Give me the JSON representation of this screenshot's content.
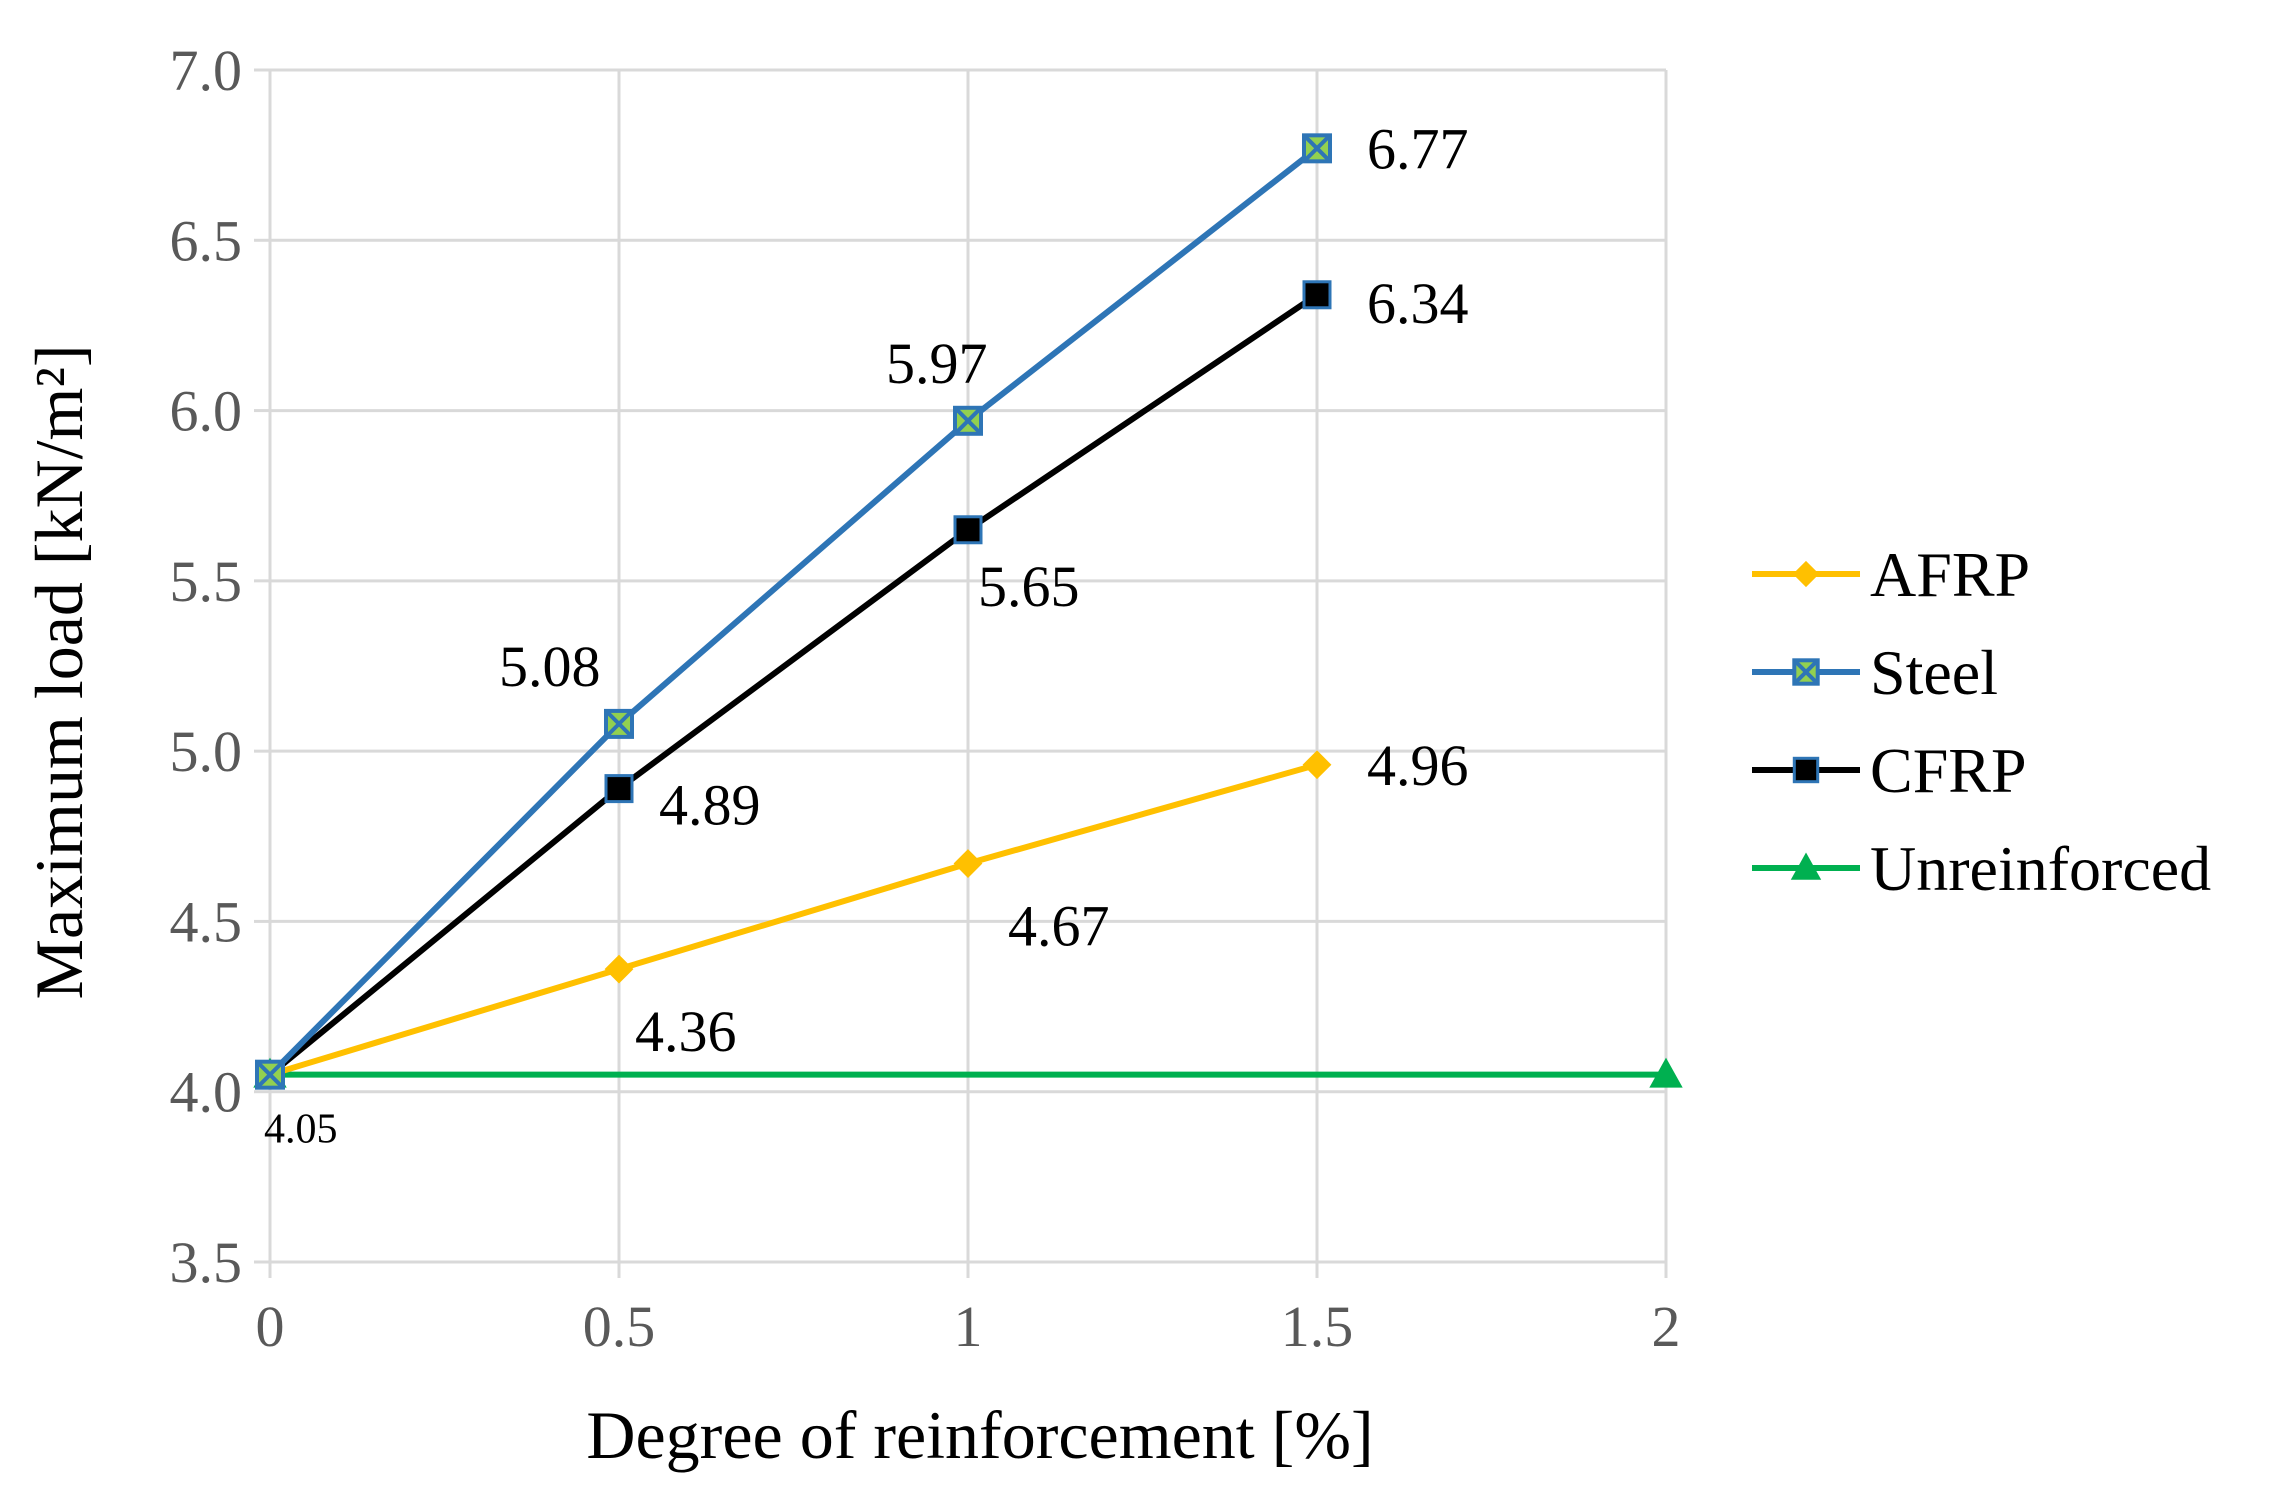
{
  "chart_data": {
    "type": "line",
    "title": "",
    "xlabel": "Degree of reinforcement [%]",
    "ylabel": "Maximum load [kN/m²]",
    "xlim": [
      0,
      2
    ],
    "ylim": [
      3.5,
      7.0
    ],
    "x_ticks": [
      "0",
      "0.5",
      "1",
      "1.5",
      "2"
    ],
    "y_ticks": [
      "3.5",
      "4.0",
      "4.5",
      "5.0",
      "5.5",
      "6.0",
      "6.5",
      "7.0"
    ],
    "grid": true,
    "legend_position": "right",
    "series": [
      {
        "name": "AFRP",
        "color": "#FFC000",
        "marker": "diamond",
        "x": [
          0,
          0.5,
          1,
          1.5
        ],
        "values": [
          4.05,
          4.36,
          4.67,
          4.96
        ],
        "labels": [
          "",
          "4.36",
          "4.67",
          "4.96"
        ]
      },
      {
        "name": "Steel",
        "color": "#2E75B6",
        "marker": "square-x",
        "marker_fill": "#92D050",
        "x": [
          0,
          0.5,
          1,
          1.5
        ],
        "values": [
          4.05,
          5.08,
          5.97,
          6.77
        ],
        "labels": [
          "",
          "5.08",
          "5.97",
          "6.77"
        ]
      },
      {
        "name": "CFRP",
        "color": "#000000",
        "marker": "square",
        "marker_stroke": "#2E75B6",
        "x": [
          0,
          0.5,
          1,
          1.5
        ],
        "values": [
          4.05,
          4.89,
          5.65,
          6.34
        ],
        "labels": [
          "",
          "4.89",
          "5.65",
          "6.34"
        ]
      },
      {
        "name": "Unreinforced",
        "color": "#00B050",
        "marker": "triangle",
        "x": [
          0,
          2
        ],
        "values": [
          4.05,
          4.05
        ],
        "labels": [
          "4.05",
          ""
        ]
      }
    ]
  }
}
